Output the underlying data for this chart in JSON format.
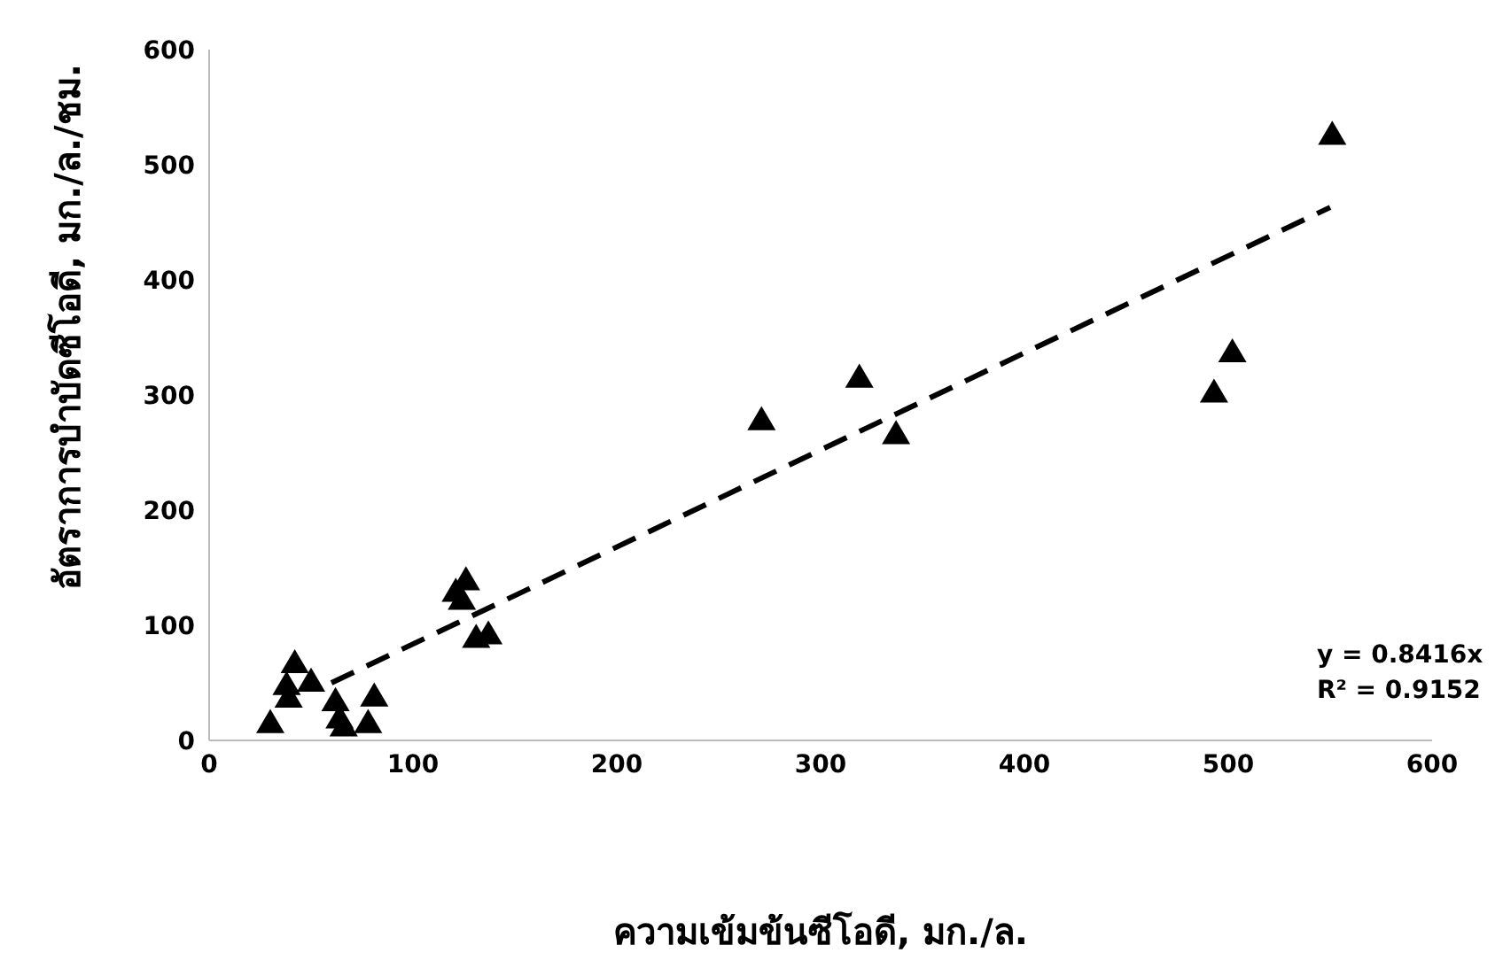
{
  "chart_data": {
    "type": "scatter",
    "xlabel": "ความเข้มข้นซีโอดี, มก./ล.",
    "ylabel": "อัตราการบำบัดซีโอดี, มก./ล./ชม.",
    "series": [
      {
        "color": "#000000",
        "marker": "triangle",
        "x": [
          30,
          39,
          42,
          38,
          50,
          62,
          64,
          66,
          78,
          81,
          126,
          124,
          121,
          131,
          137,
          271,
          319,
          337,
          493,
          502,
          551
        ],
        "values": [
          15,
          37,
          67,
          48,
          51,
          34,
          19,
          12,
          15,
          38,
          139,
          122,
          129,
          89,
          92,
          278,
          315,
          266,
          302,
          337,
          526
        ]
      },
      {
        "type": "line",
        "color": "#000000",
        "line_style": "dashed",
        "marker": "none",
        "x": [
          60,
          550
        ],
        "values": [
          50,
          463
        ]
      }
    ],
    "xlim": [
      0,
      600
    ],
    "xticks": [
      0,
      100,
      200,
      300,
      400,
      500,
      600
    ],
    "ylim": [
      0,
      600
    ],
    "yticks": [
      0,
      100,
      200,
      300,
      400,
      500,
      600
    ],
    "grid": false,
    "legend": false,
    "annotations": [
      "y = 0.8416x",
      "R² = 0.9152"
    ]
  }
}
